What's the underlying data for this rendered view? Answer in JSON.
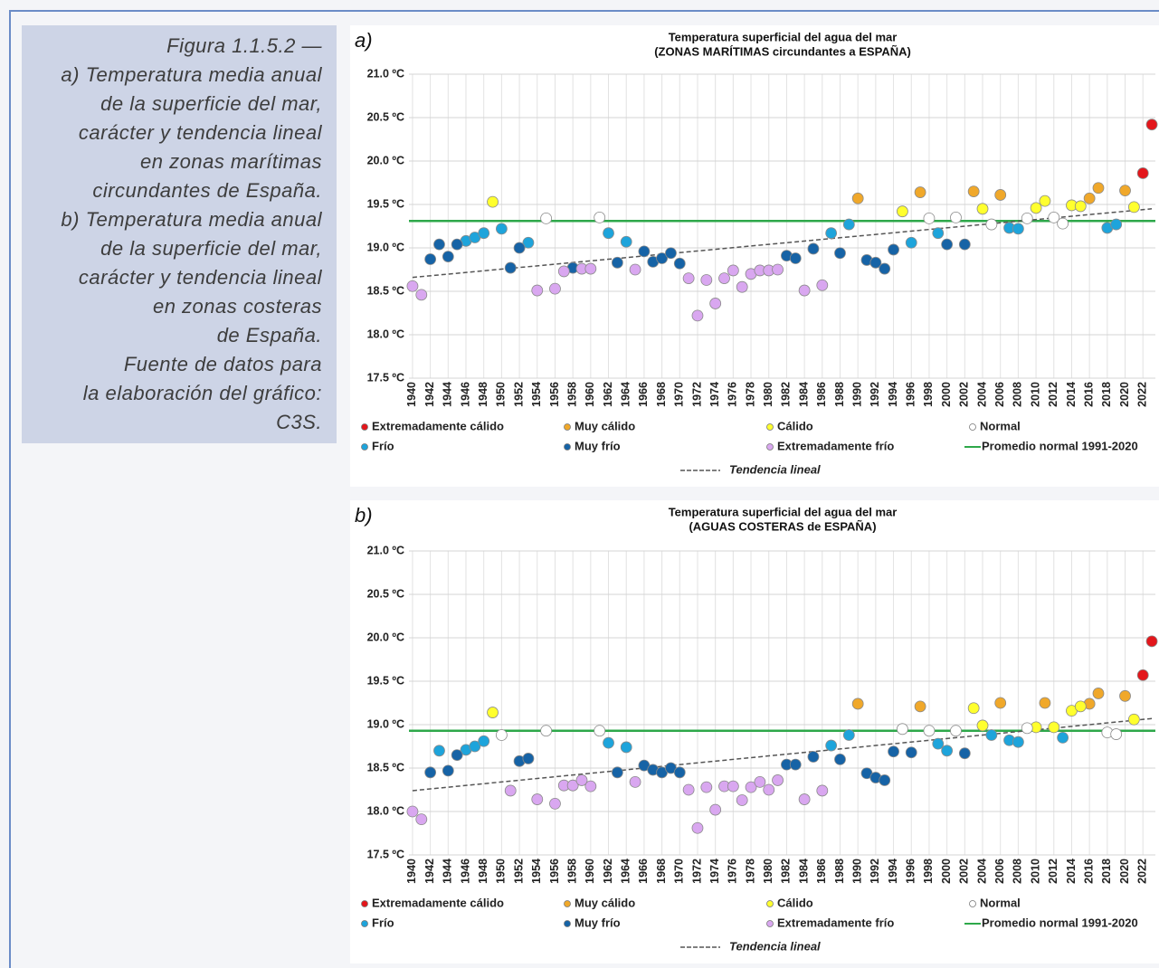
{
  "caption": [
    "Figura 1.1.5.2 —",
    "a) Temperatura media anual",
    "de la superficie del mar,",
    "carácter y tendencia lineal",
    "en zonas marítimas",
    "circundantes de España.",
    "b) Temperatura media anual",
    "de la superficie del mar,",
    "carácter y tendencia lineal",
    "en zonas costeras",
    "de España.",
    "Fuente de datos para",
    "la elaboración del gráfico:",
    "C3S."
  ],
  "chart_data": [
    {
      "type": "scatter",
      "panel_label": "a)",
      "title": "Temperatura superficial del agua del mar",
      "subtitle": "(ZONAS MARÍTIMAS circundantes a ESPAÑA)",
      "xlim": [
        1939.6,
        2023.4
      ],
      "ylim": [
        17.5,
        21.0
      ],
      "xticks": [
        1940,
        1942,
        1944,
        1946,
        1948,
        1950,
        1952,
        1954,
        1956,
        1958,
        1960,
        1962,
        1964,
        1966,
        1968,
        1970,
        1972,
        1974,
        1976,
        1978,
        1980,
        1982,
        1984,
        1986,
        1988,
        1990,
        1992,
        1994,
        1996,
        1998,
        2000,
        2002,
        2004,
        2006,
        2008,
        2010,
        2012,
        2014,
        2016,
        2018,
        2020,
        2022
      ],
      "yticks": [
        {
          "value": 17.5,
          "label": "17.5 ºC"
        },
        {
          "value": 18.0,
          "label": "18.0 ºC"
        },
        {
          "value": 18.5,
          "label": "18.5 ºC"
        },
        {
          "value": 19.0,
          "label": "19.0 ºC"
        },
        {
          "value": 19.5,
          "label": "19.5 ºC"
        },
        {
          "value": 20.0,
          "label": "20.0 ºC"
        },
        {
          "value": 20.5,
          "label": "20.5 ºC"
        },
        {
          "value": 21.0,
          "label": "21.0 ºC"
        }
      ],
      "grid": true,
      "series": [
        {
          "name": "Extremadamente cálido",
          "color": "#e3161b",
          "x": [
            2022,
            2023
          ],
          "values": [
            19.86,
            20.42
          ]
        },
        {
          "name": "Muy cálido",
          "color": "#f0a82a",
          "x": [
            1990,
            1997,
            2003,
            2006,
            2016,
            2017,
            2020
          ],
          "values": [
            19.57,
            19.64,
            19.65,
            19.61,
            19.57,
            19.69,
            19.66
          ]
        },
        {
          "name": "Cálido",
          "color": "#ffff2e",
          "x": [
            1949,
            1995,
            2004,
            2010,
            2011,
            2014,
            2015,
            2021
          ],
          "values": [
            19.53,
            19.42,
            19.45,
            19.46,
            19.54,
            19.49,
            19.48,
            19.47
          ]
        },
        {
          "name": "Normal",
          "color": "#ffffff",
          "x": [
            1955,
            1961,
            1998,
            2001,
            2005,
            2009,
            2012,
            2013
          ],
          "values": [
            19.34,
            19.35,
            19.34,
            19.35,
            19.27,
            19.34,
            19.35,
            19.28
          ]
        },
        {
          "name": "Frío",
          "color": "#1ea4db",
          "x": [
            1946,
            1947,
            1948,
            1950,
            1953,
            1962,
            1964,
            1987,
            1989,
            1996,
            1999,
            2007,
            2008,
            2018,
            2019
          ],
          "values": [
            19.08,
            19.12,
            19.17,
            19.22,
            19.06,
            19.17,
            19.07,
            19.17,
            19.27,
            19.06,
            19.17,
            19.23,
            19.22,
            19.23,
            19.27
          ]
        },
        {
          "name": "Muy frío",
          "color": "#1663a6",
          "x": [
            1942,
            1943,
            1944,
            1945,
            1951,
            1952,
            1958,
            1963,
            1966,
            1967,
            1968,
            1969,
            1970,
            1982,
            1983,
            1985,
            1988,
            1991,
            1992,
            1993,
            1994,
            2000,
            2002
          ],
          "values": [
            18.87,
            19.04,
            18.9,
            19.04,
            18.77,
            19.0,
            18.77,
            18.83,
            18.96,
            18.84,
            18.88,
            18.94,
            18.82,
            18.91,
            18.88,
            18.99,
            18.94,
            18.86,
            18.83,
            18.76,
            18.98,
            19.04,
            19.04
          ]
        },
        {
          "name": "Extremadamente frío",
          "color": "#d9a7f0",
          "x": [
            1940,
            1941,
            1954,
            1956,
            1957,
            1959,
            1960,
            1965,
            1971,
            1972,
            1973,
            1974,
            1975,
            1976,
            1977,
            1978,
            1979,
            1980,
            1981,
            1984,
            1986
          ],
          "values": [
            18.56,
            18.46,
            18.51,
            18.53,
            18.73,
            18.76,
            18.76,
            18.75,
            18.65,
            18.22,
            18.63,
            18.36,
            18.65,
            18.74,
            18.55,
            18.7,
            18.74,
            18.74,
            18.75,
            18.51,
            18.57
          ]
        }
      ],
      "reference_line": {
        "name": "Promedio normal 1991-2020",
        "color": "#2ea84a",
        "value": 19.31
      },
      "trend": {
        "name": "Tendencia lineal",
        "color": "#555555",
        "x": [
          1940,
          2023
        ],
        "values": [
          18.66,
          19.45
        ]
      }
    },
    {
      "type": "scatter",
      "panel_label": "b)",
      "title": "Temperatura superficial del agua del mar",
      "subtitle": "(AGUAS COSTERAS de ESPAÑA)",
      "xlim": [
        1939.6,
        2023.4
      ],
      "ylim": [
        17.5,
        21.0
      ],
      "xticks": [
        1940,
        1942,
        1944,
        1946,
        1948,
        1950,
        1952,
        1954,
        1956,
        1958,
        1960,
        1962,
        1964,
        1966,
        1968,
        1970,
        1972,
        1974,
        1976,
        1978,
        1980,
        1982,
        1984,
        1986,
        1988,
        1990,
        1992,
        1994,
        1996,
        1998,
        2000,
        2002,
        2004,
        2006,
        2008,
        2010,
        2012,
        2014,
        2016,
        2018,
        2020,
        2022
      ],
      "yticks": [
        {
          "value": 17.5,
          "label": "17.5 ºC"
        },
        {
          "value": 18.0,
          "label": "18.0 ºC"
        },
        {
          "value": 18.5,
          "label": "18.5 ºC"
        },
        {
          "value": 19.0,
          "label": "19.0 ºC"
        },
        {
          "value": 19.5,
          "label": "19.5 ºC"
        },
        {
          "value": 20.0,
          "label": "20.0 ºC"
        },
        {
          "value": 20.5,
          "label": "20.5 ºC"
        },
        {
          "value": 21.0,
          "label": "21.0 ºC"
        }
      ],
      "grid": true,
      "series": [
        {
          "name": "Extremadamente cálido",
          "color": "#e3161b",
          "x": [
            2022,
            2023
          ],
          "values": [
            19.57,
            19.96
          ]
        },
        {
          "name": "Muy cálido",
          "color": "#f0a82a",
          "x": [
            1990,
            1997,
            2006,
            2011,
            2016,
            2017,
            2020
          ],
          "values": [
            19.24,
            19.21,
            19.25,
            19.25,
            19.24,
            19.36,
            19.33
          ]
        },
        {
          "name": "Cálido",
          "color": "#ffff2e",
          "x": [
            1949,
            2003,
            2004,
            2010,
            2012,
            2014,
            2015,
            2021
          ],
          "values": [
            19.14,
            19.19,
            18.99,
            18.97,
            18.97,
            19.16,
            19.21,
            19.06
          ]
        },
        {
          "name": "Normal",
          "color": "#ffffff",
          "x": [
            1950,
            1955,
            1961,
            1995,
            1998,
            2001,
            2009,
            2018,
            2019
          ],
          "values": [
            18.88,
            18.93,
            18.93,
            18.95,
            18.93,
            18.93,
            18.96,
            18.91,
            18.89
          ]
        },
        {
          "name": "Frío",
          "color": "#1ea4db",
          "x": [
            1943,
            1946,
            1947,
            1948,
            1962,
            1964,
            1987,
            1989,
            1999,
            2000,
            2005,
            2007,
            2008,
            2013
          ],
          "values": [
            18.7,
            18.71,
            18.75,
            18.81,
            18.79,
            18.74,
            18.76,
            18.88,
            18.78,
            18.7,
            18.88,
            18.82,
            18.8,
            18.85
          ]
        },
        {
          "name": "Muy frío",
          "color": "#1663a6",
          "x": [
            1942,
            1944,
            1945,
            1952,
            1953,
            1963,
            1966,
            1967,
            1968,
            1969,
            1970,
            1982,
            1983,
            1985,
            1988,
            1991,
            1992,
            1993,
            1994,
            1996,
            2002
          ],
          "values": [
            18.45,
            18.47,
            18.65,
            18.58,
            18.61,
            18.45,
            18.53,
            18.48,
            18.45,
            18.5,
            18.45,
            18.54,
            18.54,
            18.63,
            18.6,
            18.44,
            18.39,
            18.36,
            18.69,
            18.68,
            18.67
          ]
        },
        {
          "name": "Extremadamente frío",
          "color": "#d9a7f0",
          "x": [
            1940,
            1941,
            1951,
            1954,
            1956,
            1957,
            1958,
            1959,
            1960,
            1965,
            1971,
            1972,
            1973,
            1974,
            1975,
            1976,
            1977,
            1978,
            1979,
            1980,
            1981,
            1984,
            1986
          ],
          "values": [
            18.0,
            17.91,
            18.24,
            18.14,
            18.09,
            18.3,
            18.3,
            18.36,
            18.29,
            18.34,
            18.25,
            17.81,
            18.28,
            18.02,
            18.29,
            18.29,
            18.13,
            18.28,
            18.34,
            18.25,
            18.36,
            18.14,
            18.24
          ]
        }
      ],
      "reference_line": {
        "name": "Promedio normal 1991-2020",
        "color": "#2ea84a",
        "value": 18.93
      },
      "trend": {
        "name": "Tendencia lineal",
        "color": "#555555",
        "x": [
          1940,
          2023
        ],
        "values": [
          18.24,
          19.07
        ]
      }
    }
  ]
}
